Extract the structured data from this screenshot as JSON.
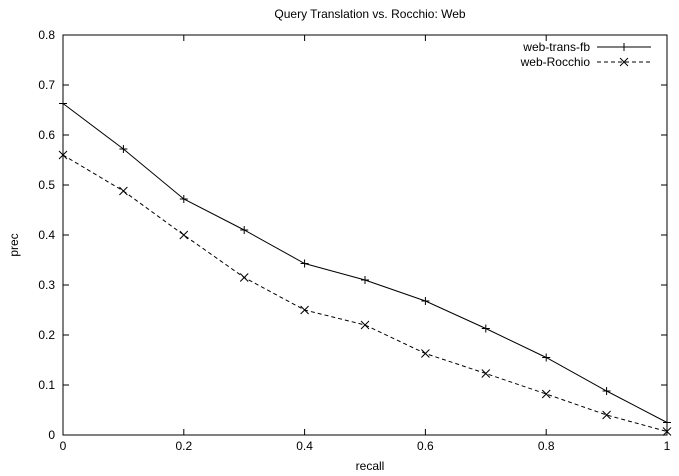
{
  "chart_data": {
    "type": "line",
    "title": "Query Translation vs. Rocchio: Web",
    "xlabel": "recall",
    "ylabel": "prec",
    "xlim": [
      0,
      1
    ],
    "ylim": [
      0,
      0.8
    ],
    "xticks": [
      "0",
      "0.2",
      "0.4",
      "0.6",
      "0.8",
      "1"
    ],
    "yticks": [
      "0",
      "0.1",
      "0.2",
      "0.3",
      "0.4",
      "0.5",
      "0.6",
      "0.7",
      "0.8"
    ],
    "x": [
      0,
      0.1,
      0.2,
      0.3,
      0.4,
      0.5,
      0.6,
      0.7,
      0.8,
      0.9,
      1.0
    ],
    "legend_position": "top-right",
    "grid": false,
    "series": [
      {
        "name": "web-trans-fb",
        "style": "solid",
        "marker": "plus",
        "values": [
          0.663,
          0.572,
          0.472,
          0.41,
          0.343,
          0.31,
          0.268,
          0.213,
          0.155,
          0.088,
          0.025
        ]
      },
      {
        "name": "web-Rocchio",
        "style": "dashed",
        "marker": "cross",
        "values": [
          0.56,
          0.488,
          0.4,
          0.315,
          0.25,
          0.22,
          0.163,
          0.123,
          0.082,
          0.04,
          0.007
        ]
      }
    ]
  }
}
